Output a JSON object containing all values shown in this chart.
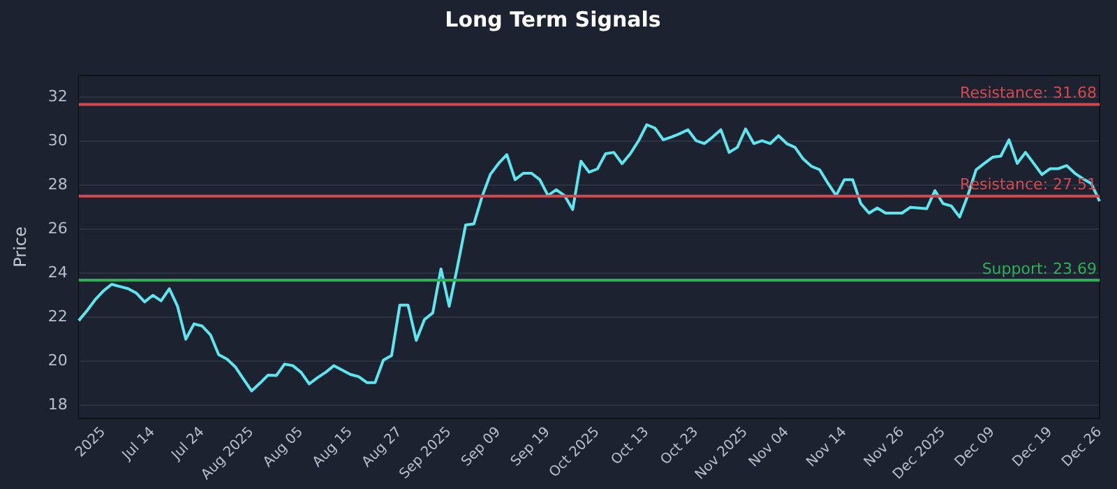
{
  "chart_data": {
    "type": "line",
    "title": "Long Term Signals",
    "ylabel": "Price",
    "categories": [
      null,
      null,
      null,
      "2025",
      null,
      null,
      null,
      null,
      null,
      "Jul 14",
      null,
      null,
      null,
      null,
      null,
      "Jul 24",
      null,
      null,
      null,
      null,
      null,
      "Aug 2025",
      null,
      null,
      null,
      null,
      null,
      "Aug 05",
      null,
      null,
      null,
      null,
      null,
      "Aug 15",
      null,
      null,
      null,
      null,
      null,
      "Aug 27",
      null,
      null,
      null,
      null,
      null,
      "Sep 2025",
      null,
      null,
      null,
      null,
      null,
      "Sep 09",
      null,
      null,
      null,
      null,
      null,
      "Sep 19",
      null,
      null,
      null,
      null,
      null,
      "Oct 2025",
      null,
      null,
      null,
      null,
      null,
      "Oct 13",
      null,
      null,
      null,
      null,
      null,
      "Oct 23",
      null,
      null,
      null,
      null,
      null,
      "Nov 2025",
      null,
      null,
      null,
      null,
      "Nov 04",
      null,
      null,
      null,
      null,
      null,
      null,
      "Nov 14",
      null,
      null,
      null,
      null,
      null,
      null,
      "Nov 26",
      null,
      null,
      null,
      null,
      "Dec 2025",
      null,
      null,
      null,
      null,
      null,
      "Dec 09",
      null,
      null,
      null,
      null,
      null,
      null,
      "Dec 19",
      null,
      null,
      null,
      null,
      null,
      "Dec 26"
    ],
    "series": [
      {
        "color": "#5ee6ee",
        "values": [
          21.85,
          22.3,
          22.8,
          23.2,
          23.5,
          23.4,
          23.3,
          23.1,
          22.7,
          23.0,
          22.75,
          23.3,
          22.5,
          21.0,
          21.7,
          21.6,
          21.2,
          20.3,
          20.1,
          19.75,
          19.2,
          18.65,
          19.0,
          19.37,
          19.35,
          19.87,
          19.8,
          19.5,
          18.97,
          19.25,
          19.5,
          19.8,
          19.6,
          19.4,
          19.3,
          19.03,
          19.03,
          20.05,
          20.26,
          22.55,
          22.55,
          20.95,
          21.9,
          22.2,
          24.2,
          22.5,
          24.3,
          26.2,
          26.25,
          27.5,
          28.5,
          29.0,
          29.4,
          28.26,
          28.55,
          28.55,
          28.26,
          27.54,
          27.8,
          27.54,
          26.9,
          29.1,
          28.6,
          28.75,
          29.44,
          29.5,
          28.99,
          29.44,
          30.03,
          30.76,
          30.6,
          30.07,
          30.2,
          30.35,
          30.53,
          30.03,
          29.9,
          30.2,
          30.53,
          29.5,
          29.73,
          30.57,
          29.9,
          30.03,
          29.9,
          30.26,
          29.9,
          29.73,
          29.2,
          28.87,
          28.71,
          28.1,
          27.54,
          28.26,
          28.26,
          27.17,
          26.74,
          26.97,
          26.74,
          26.74,
          26.74,
          27.0,
          26.97,
          26.94,
          27.76,
          27.17,
          27.06,
          26.56,
          27.54,
          28.71,
          29.0,
          29.28,
          29.33,
          30.07,
          29.0,
          29.5,
          29.0,
          28.49,
          28.76,
          28.76,
          28.9,
          28.55,
          28.3,
          28.08,
          27.28
        ]
      }
    ],
    "ylim": [
      17.4,
      33
    ],
    "yticks": [
      18,
      20,
      22,
      24,
      26,
      28,
      30,
      32
    ],
    "grid": "y",
    "legend": false,
    "marker": "none",
    "line_style": "solid",
    "ref_lines": [
      {
        "axis": "y",
        "value": 31.68,
        "label": "Resistance: 31.68",
        "color": "#d24a4f"
      },
      {
        "axis": "y",
        "value": 27.51,
        "label": "Resistance: 27.51",
        "color": "#d24a4f"
      },
      {
        "axis": "y",
        "value": 23.69,
        "label": "Support: 23.69",
        "color": "#2fae5a"
      }
    ]
  }
}
